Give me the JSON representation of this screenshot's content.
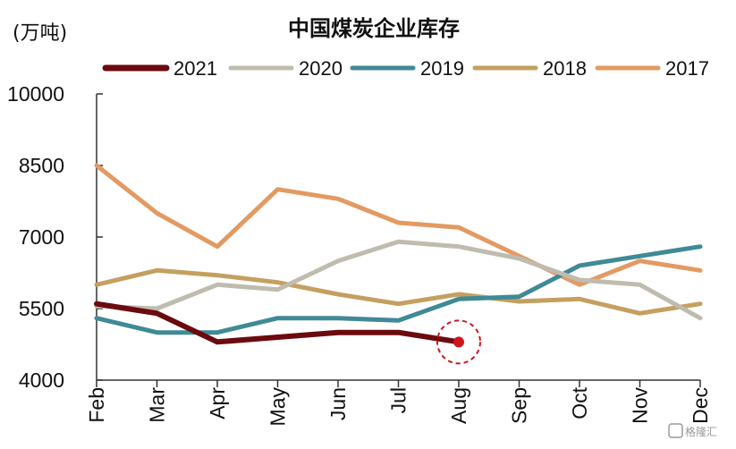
{
  "chart_data": {
    "type": "line",
    "title": "中国煤炭企业库存",
    "ylabel": "(万吨)",
    "xlabel": "",
    "categories": [
      "Feb",
      "Mar",
      "Apr",
      "May",
      "Jun",
      "Jul",
      "Aug",
      "Sep",
      "Oct",
      "Nov",
      "Dec"
    ],
    "yticks": [
      "10000",
      "8500",
      "7000",
      "5500",
      "4000"
    ],
    "ylim": [
      4000,
      10000
    ],
    "legend_position": "top",
    "grid": false,
    "series": [
      {
        "name": "2021",
        "color": "#6b0a0f",
        "values": [
          5600,
          5400,
          4800,
          4900,
          5000,
          5000,
          4800,
          null,
          null,
          null,
          null
        ]
      },
      {
        "name": "2020",
        "color": "#bfbcaf",
        "values": [
          5550,
          5500,
          6000,
          5900,
          6500,
          6900,
          6800,
          6550,
          6100,
          6000,
          5300
        ]
      },
      {
        "name": "2019",
        "color": "#3f8a96",
        "values": [
          5300,
          5000,
          5000,
          5300,
          5300,
          5250,
          5700,
          5750,
          6400,
          6600,
          6800
        ]
      },
      {
        "name": "2018",
        "color": "#c4a060",
        "values": [
          6000,
          6300,
          6200,
          6050,
          5800,
          5600,
          5800,
          5650,
          5700,
          5400,
          5600
        ]
      },
      {
        "name": "2017",
        "color": "#e39a62",
        "values": [
          8500,
          7500,
          6800,
          8000,
          7800,
          7300,
          7200,
          6600,
          6000,
          6500,
          6300
        ]
      }
    ],
    "highlight": {
      "series": "2021",
      "category": "Aug",
      "value": 4800,
      "color": "#d0141d"
    }
  },
  "watermark": {
    "text": "格隆汇",
    "icon": "g-logo-icon"
  }
}
